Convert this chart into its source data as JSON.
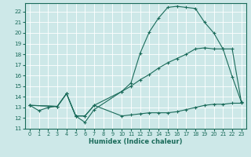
{
  "bg_color": "#cde8e8",
  "grid_color": "#b0d8d8",
  "line_color": "#1a6b5a",
  "xlabel": "Humidex (Indice chaleur)",
  "xlim_min": -0.5,
  "xlim_max": 23.5,
  "ylim_min": 11,
  "ylim_max": 22.8,
  "xticks": [
    0,
    1,
    2,
    3,
    4,
    5,
    6,
    7,
    8,
    9,
    10,
    11,
    12,
    13,
    14,
    15,
    16,
    17,
    18,
    19,
    20,
    21,
    22,
    23
  ],
  "yticks": [
    11,
    12,
    13,
    14,
    15,
    16,
    17,
    18,
    19,
    20,
    21,
    22
  ],
  "curve1_x": [
    0,
    1,
    2,
    3,
    4,
    5,
    6,
    7,
    10,
    11,
    12,
    13,
    14,
    15,
    16,
    17,
    18,
    19,
    20,
    21,
    22,
    23
  ],
  "curve1_y": [
    13.2,
    12.7,
    13.0,
    13.1,
    14.3,
    12.2,
    11.6,
    12.8,
    14.5,
    15.3,
    18.1,
    20.1,
    21.4,
    22.4,
    22.5,
    22.4,
    22.3,
    21.0,
    20.0,
    18.5,
    15.9,
    13.5
  ],
  "curve2_x": [
    0,
    3,
    4,
    5,
    6,
    7,
    10,
    11,
    12,
    13,
    14,
    15,
    16,
    17,
    18,
    19,
    20,
    21,
    22,
    23
  ],
  "curve2_y": [
    13.2,
    13.1,
    14.3,
    12.2,
    12.2,
    13.2,
    14.5,
    15.0,
    15.6,
    16.1,
    16.7,
    17.2,
    17.6,
    18.0,
    18.5,
    18.6,
    18.5,
    18.5,
    18.5,
    13.5
  ],
  "curve3_x": [
    0,
    3,
    4,
    5,
    6,
    7,
    10,
    11,
    12,
    13,
    14,
    15,
    16,
    17,
    18,
    19,
    20,
    21,
    22,
    23
  ],
  "curve3_y": [
    13.2,
    13.1,
    14.3,
    12.2,
    12.2,
    13.2,
    12.2,
    12.3,
    12.4,
    12.5,
    12.5,
    12.5,
    12.6,
    12.8,
    13.0,
    13.2,
    13.3,
    13.3,
    13.4,
    13.4
  ]
}
